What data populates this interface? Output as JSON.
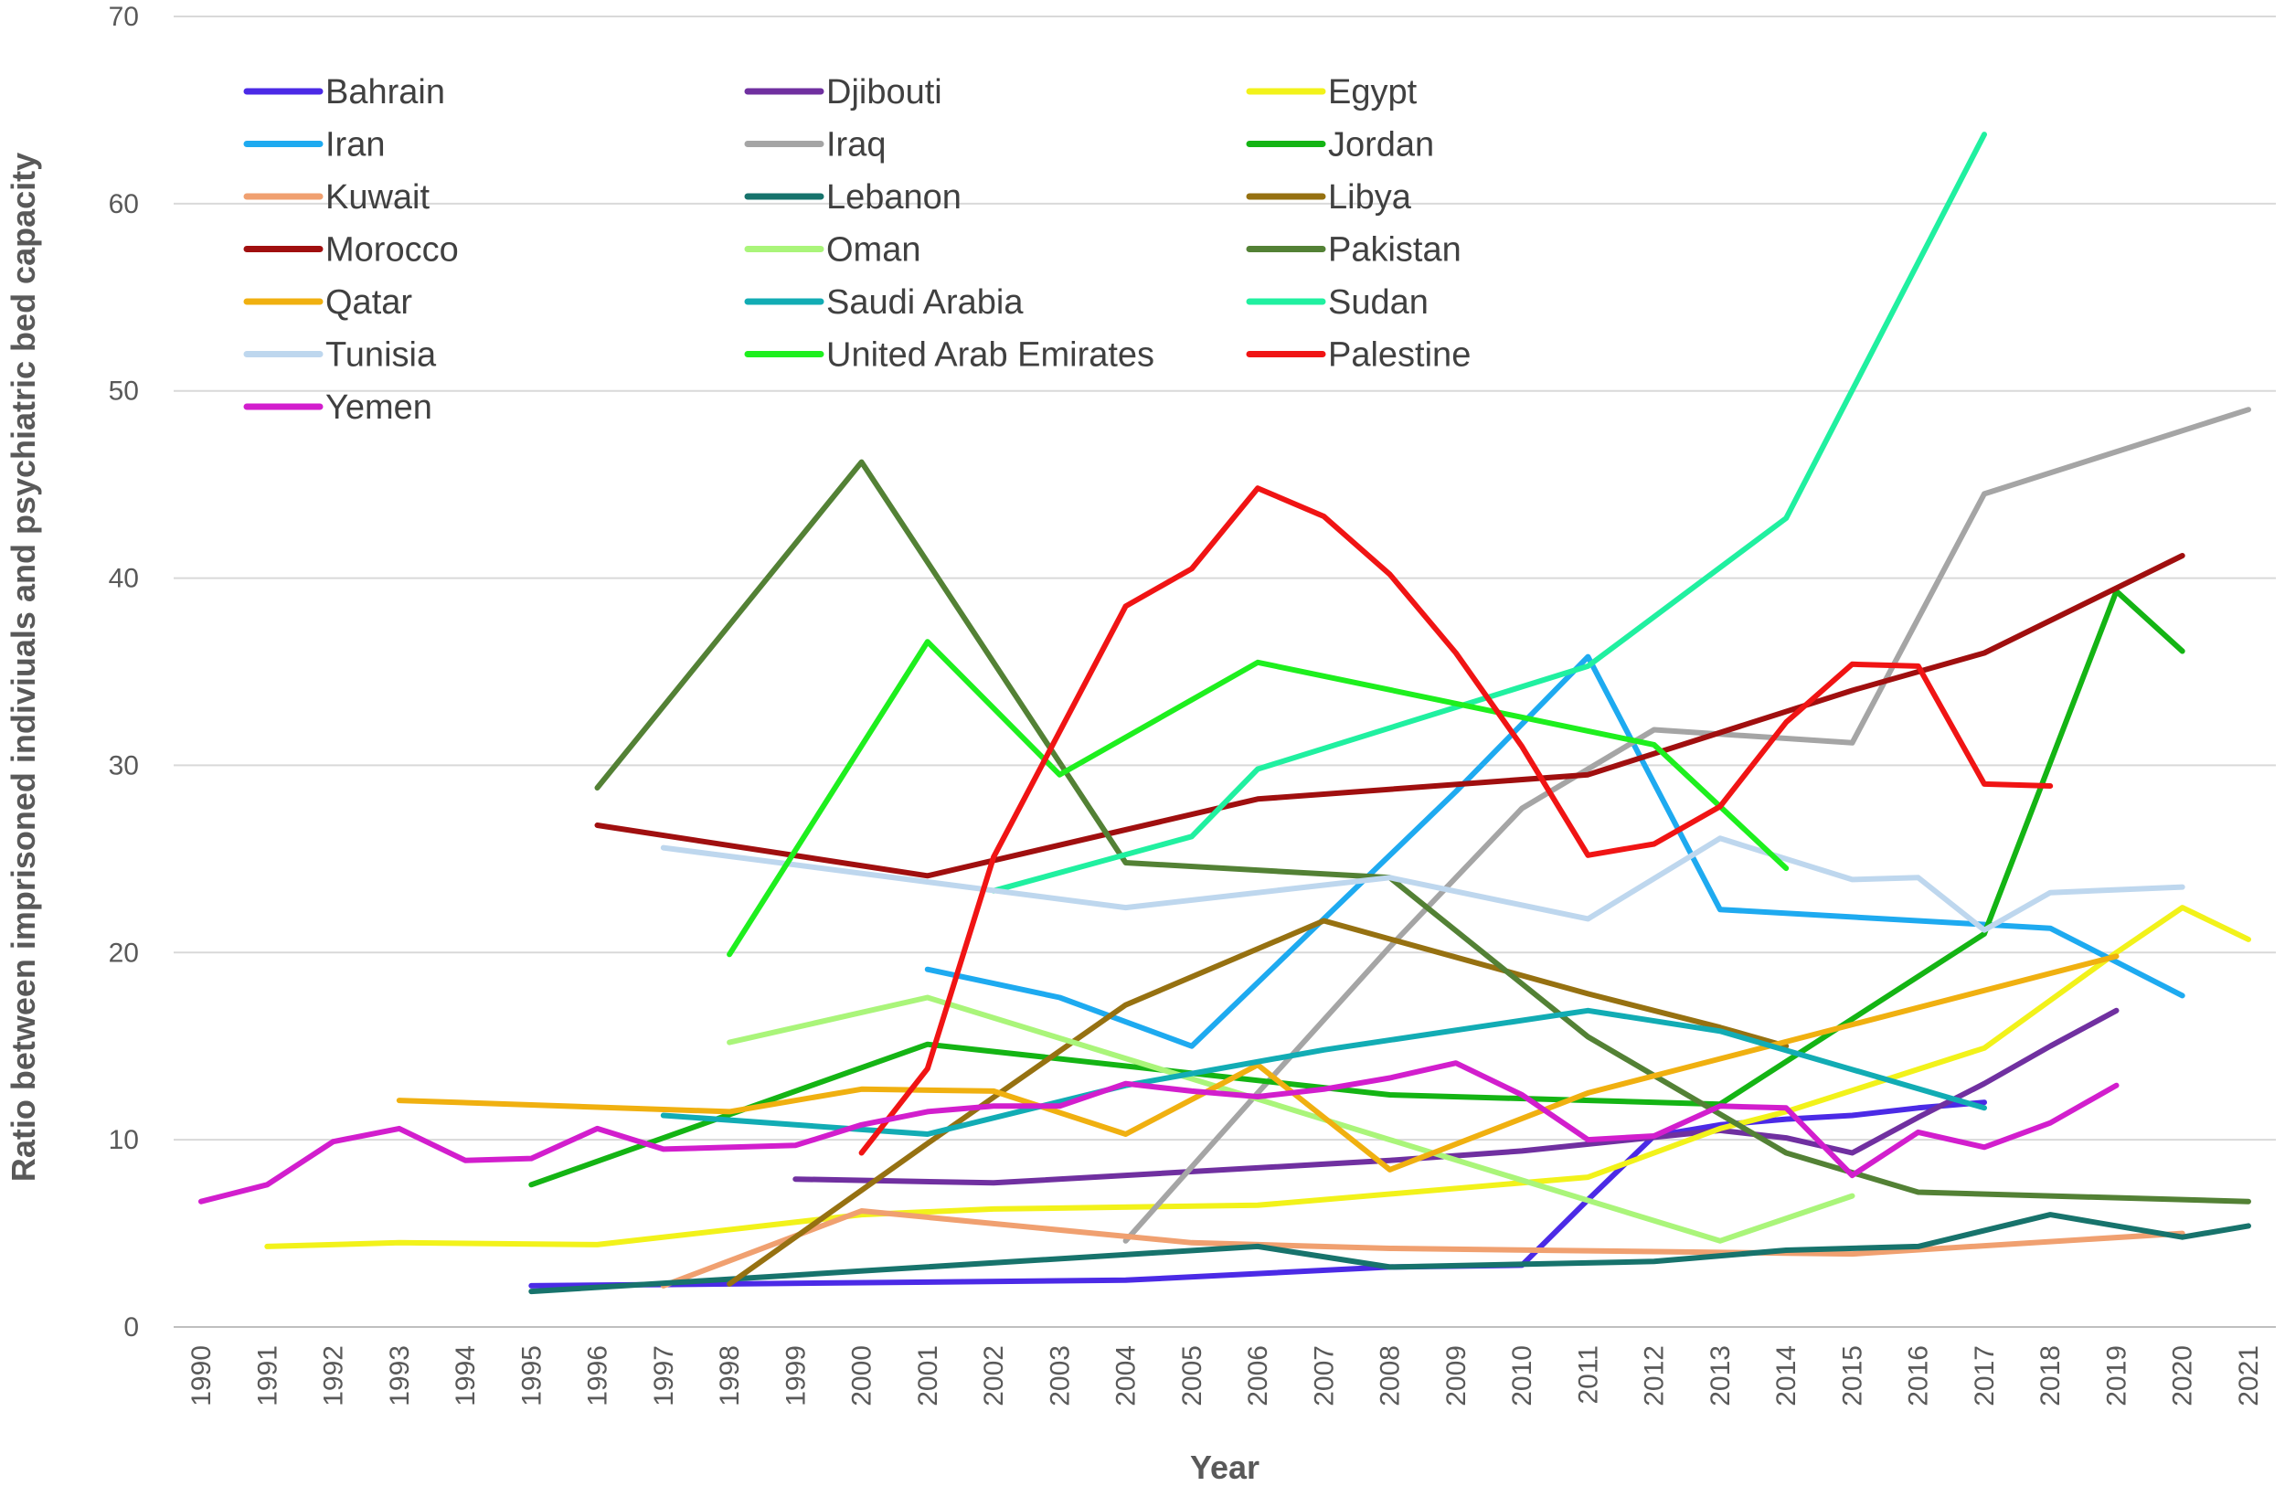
{
  "chart_data": {
    "type": "line",
    "title": "",
    "xlabel": "Year",
    "ylabel": "Ratio between imprisoned indiviuals and psychiatric bed capacity",
    "ylim": [
      0,
      70
    ],
    "yticks": [
      0,
      10,
      20,
      30,
      40,
      50,
      60,
      70
    ],
    "categories": [
      "1990",
      "1991",
      "1992",
      "1993",
      "1994",
      "1995",
      "1996",
      "1997",
      "1998",
      "1999",
      "2000",
      "2001",
      "2002",
      "2003",
      "2004",
      "2005",
      "2006",
      "2007",
      "2008",
      "2009",
      "2010",
      "2011",
      "2012",
      "2013",
      "2014",
      "2015",
      "2016",
      "2017",
      "2018",
      "2019",
      "2020",
      "2021"
    ],
    "grid": "horizontal",
    "legend_position": "top-left",
    "series": [
      {
        "name": "Bahrain",
        "color": "#4b2ae6",
        "points": [
          [
            1995,
            2.2
          ],
          [
            2004,
            2.5
          ],
          [
            2008,
            3.2
          ],
          [
            2010,
            3.3
          ],
          [
            2011,
            6.8
          ],
          [
            2012,
            10.2
          ],
          [
            2013,
            10.8
          ],
          [
            2014,
            11.1
          ],
          [
            2015,
            11.3
          ],
          [
            2016,
            11.7
          ],
          [
            2017,
            12.0
          ]
        ]
      },
      {
        "name": "Djibouti",
        "color": "#7030a0",
        "points": [
          [
            1999,
            7.9
          ],
          [
            2002,
            7.7
          ],
          [
            2008,
            8.9
          ],
          [
            2010,
            9.4
          ],
          [
            2013,
            10.5
          ],
          [
            2014,
            10.1
          ],
          [
            2015,
            9.3
          ],
          [
            2016,
            11.2
          ],
          [
            2017,
            13.0
          ],
          [
            2018,
            15.0
          ],
          [
            2019,
            16.9
          ]
        ]
      },
      {
        "name": "Egypt",
        "color": "#f2f21a",
        "points": [
          [
            1991,
            4.3
          ],
          [
            1993,
            4.5
          ],
          [
            1996,
            4.4
          ],
          [
            2000,
            6.0
          ],
          [
            2002,
            6.3
          ],
          [
            2006,
            6.5
          ],
          [
            2011,
            8.0
          ],
          [
            2013,
            10.6
          ],
          [
            2014,
            11.5
          ],
          [
            2017,
            14.9
          ],
          [
            2019,
            20.0
          ],
          [
            2020,
            22.4
          ],
          [
            2021,
            20.7
          ]
        ]
      },
      {
        "name": "Iran",
        "color": "#1eaaf0",
        "points": [
          [
            2001,
            19.1
          ],
          [
            2003,
            17.6
          ],
          [
            2005,
            15.0
          ],
          [
            2006,
            18.4
          ],
          [
            2009,
            28.6
          ],
          [
            2011,
            35.8
          ],
          [
            2013,
            22.3
          ],
          [
            2017,
            21.5
          ],
          [
            2018,
            21.3
          ],
          [
            2020,
            17.7
          ]
        ]
      },
      {
        "name": "Iraq",
        "color": "#a5a5a5",
        "points": [
          [
            2004,
            4.6
          ],
          [
            2006,
            12.5
          ],
          [
            2008,
            20.3
          ],
          [
            2010,
            27.7
          ],
          [
            2012,
            31.9
          ],
          [
            2015,
            31.2
          ],
          [
            2017,
            44.5
          ],
          [
            2021,
            49.0
          ]
        ]
      },
      {
        "name": "Jordan",
        "color": "#14b414",
        "points": [
          [
            1995,
            7.6
          ],
          [
            2001,
            15.1
          ],
          [
            2008,
            12.4
          ],
          [
            2013,
            11.9
          ],
          [
            2017,
            21.0
          ],
          [
            2019,
            39.3
          ],
          [
            2020,
            36.1
          ]
        ]
      },
      {
        "name": "Kuwait",
        "color": "#f0a070",
        "points": [
          [
            1997,
            2.2
          ],
          [
            2000,
            6.2
          ],
          [
            2005,
            4.5
          ],
          [
            2008,
            4.2
          ],
          [
            2015,
            3.9
          ],
          [
            2020,
            5.0
          ]
        ]
      },
      {
        "name": "Lebanon",
        "color": "#17736c",
        "points": [
          [
            1995,
            1.9
          ],
          [
            2006,
            4.3
          ],
          [
            2008,
            3.2
          ],
          [
            2012,
            3.5
          ],
          [
            2014,
            4.1
          ],
          [
            2016,
            4.3
          ],
          [
            2018,
            6.0
          ],
          [
            2020,
            4.8
          ],
          [
            2021,
            5.4
          ]
        ]
      },
      {
        "name": "Libya",
        "color": "#967111",
        "points": [
          [
            1998,
            2.3
          ],
          [
            2001,
            9.8
          ],
          [
            2004,
            17.2
          ],
          [
            2007,
            21.7
          ],
          [
            2011,
            17.8
          ],
          [
            2013,
            16.0
          ],
          [
            2014,
            15.0
          ]
        ]
      },
      {
        "name": "Morocco",
        "color": "#a00f0f",
        "points": [
          [
            1996,
            26.8
          ],
          [
            2001,
            24.1
          ],
          [
            2006,
            28.2
          ],
          [
            2011,
            29.5
          ],
          [
            2015,
            34.0
          ],
          [
            2017,
            36.0
          ],
          [
            2020,
            41.2
          ]
        ]
      },
      {
        "name": "Oman",
        "color": "#aaf57a",
        "points": [
          [
            1998,
            15.2
          ],
          [
            2001,
            17.6
          ],
          [
            2008,
            10.0
          ],
          [
            2013,
            4.6
          ],
          [
            2015,
            7.0
          ]
        ]
      },
      {
        "name": "Pakistan",
        "color": "#538135",
        "points": [
          [
            1996,
            28.8
          ],
          [
            2000,
            46.2
          ],
          [
            2004,
            24.8
          ],
          [
            2008,
            24.0
          ],
          [
            2011,
            15.5
          ],
          [
            2014,
            9.3
          ],
          [
            2016,
            7.2
          ],
          [
            2021,
            6.7
          ]
        ]
      },
      {
        "name": "Qatar",
        "color": "#f0b010",
        "points": [
          [
            1993,
            12.1
          ],
          [
            1998,
            11.5
          ],
          [
            2000,
            12.7
          ],
          [
            2002,
            12.6
          ],
          [
            2004,
            10.3
          ],
          [
            2006,
            14.0
          ],
          [
            2008,
            8.4
          ],
          [
            2011,
            12.5
          ],
          [
            2019,
            19.8
          ]
        ]
      },
      {
        "name": "Saudi Arabia",
        "color": "#12acb4",
        "points": [
          [
            1997,
            11.3
          ],
          [
            2001,
            10.3
          ],
          [
            2004,
            12.9
          ],
          [
            2007,
            14.8
          ],
          [
            2011,
            16.9
          ],
          [
            2013,
            15.8
          ],
          [
            2017,
            11.7
          ]
        ]
      },
      {
        "name": "Sudan",
        "color": "#20f0a0",
        "points": [
          [
            2002,
            23.3
          ],
          [
            2005,
            26.2
          ],
          [
            2006,
            29.8
          ],
          [
            2011,
            35.3
          ],
          [
            2014,
            43.2
          ],
          [
            2017,
            63.7
          ]
        ]
      },
      {
        "name": "Tunisia",
        "color": "#bed7ee",
        "points": [
          [
            1997,
            25.6
          ],
          [
            2004,
            22.4
          ],
          [
            2008,
            24.0
          ],
          [
            2011,
            21.8
          ],
          [
            2013,
            26.1
          ],
          [
            2015,
            23.9
          ],
          [
            2016,
            24.0
          ],
          [
            2017,
            21.2
          ],
          [
            2018,
            23.2
          ],
          [
            2020,
            23.5
          ]
        ]
      },
      {
        "name": "United Arab Emirates",
        "color": "#1eef1e",
        "points": [
          [
            1998,
            19.9
          ],
          [
            2001,
            36.6
          ],
          [
            2003,
            29.5
          ],
          [
            2006,
            35.5
          ],
          [
            2012,
            31.1
          ],
          [
            2014,
            24.5
          ]
        ]
      },
      {
        "name": "Palestine",
        "color": "#f01414",
        "points": [
          [
            2000,
            9.3
          ],
          [
            2001,
            13.8
          ],
          [
            2002,
            25.1
          ],
          [
            2004,
            38.5
          ],
          [
            2005,
            40.5
          ],
          [
            2006,
            44.8
          ],
          [
            2007,
            43.3
          ],
          [
            2008,
            40.2
          ],
          [
            2009,
            36.0
          ],
          [
            2010,
            31.0
          ],
          [
            2011,
            25.2
          ],
          [
            2012,
            25.8
          ],
          [
            2013,
            27.8
          ],
          [
            2014,
            32.3
          ],
          [
            2015,
            35.4
          ],
          [
            2016,
            35.3
          ],
          [
            2017,
            29.0
          ],
          [
            2018,
            28.9
          ]
        ]
      },
      {
        "name": "Yemen",
        "color": "#d21ecd",
        "points": [
          [
            1990,
            6.7
          ],
          [
            1991,
            7.6
          ],
          [
            1992,
            9.9
          ],
          [
            1993,
            10.6
          ],
          [
            1994,
            8.9
          ],
          [
            1995,
            9.0
          ],
          [
            1996,
            10.6
          ],
          [
            1997,
            9.5
          ],
          [
            1999,
            9.7
          ],
          [
            2000,
            10.8
          ],
          [
            2001,
            11.5
          ],
          [
            2002,
            11.8
          ],
          [
            2003,
            11.8
          ],
          [
            2004,
            13.0
          ],
          [
            2005,
            12.6
          ],
          [
            2006,
            12.3
          ],
          [
            2007,
            12.7
          ],
          [
            2008,
            13.3
          ],
          [
            2009,
            14.1
          ],
          [
            2010,
            12.4
          ],
          [
            2011,
            10.0
          ],
          [
            2012,
            10.2
          ],
          [
            2013,
            11.8
          ],
          [
            2014,
            11.7
          ],
          [
            2015,
            8.1
          ],
          [
            2016,
            10.4
          ],
          [
            2017,
            9.6
          ],
          [
            2018,
            10.9
          ],
          [
            2019,
            12.9
          ]
        ]
      }
    ]
  }
}
